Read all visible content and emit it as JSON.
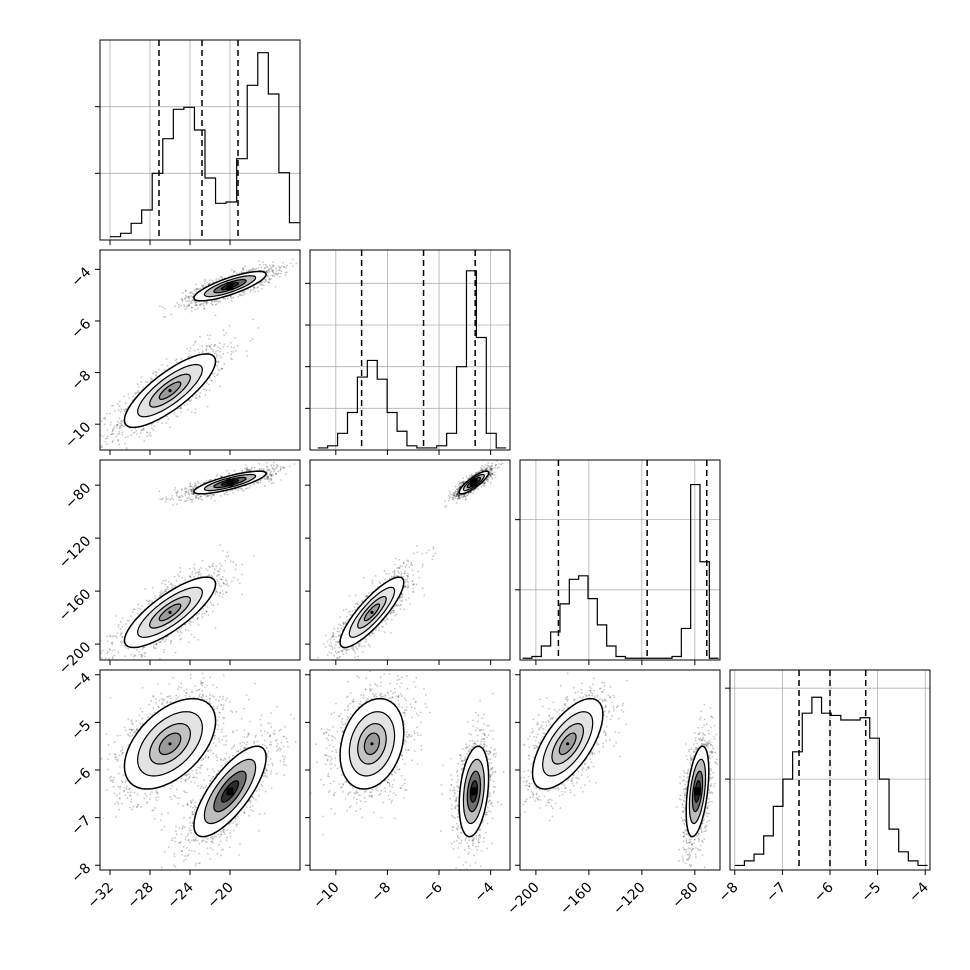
{
  "chart_data": {
    "type": "corner",
    "parameters": [
      {
        "ticks": [
          "−32",
          "−28",
          "−24",
          "−20"
        ],
        "tick_values": [
          -32,
          -28,
          -24,
          -20
        ],
        "range": [
          -33,
          -13
        ]
      },
      {
        "ticks": [
          "−10",
          "−8",
          "−6",
          "−4"
        ],
        "tick_values": [
          -10,
          -8,
          -6,
          -4
        ],
        "range": [
          -11,
          -3.25
        ]
      },
      {
        "ticks": [
          "−200",
          "−160",
          "−120",
          "−80"
        ],
        "tick_values": [
          -200,
          -160,
          -120,
          -80
        ],
        "range": [
          -212,
          -61
        ]
      },
      {
        "ticks": [
          "−8",
          "−7",
          "−6",
          "−5",
          "−4"
        ],
        "tick_values": [
          -8,
          -7,
          -6,
          -5,
          -4
        ],
        "range": [
          -8.1,
          -3.9
        ]
      }
    ],
    "histograms": [
      {
        "param": 0,
        "range": [
          -32,
          -13
        ],
        "max": 0.3,
        "counts": [
          0.005,
          0.01,
          0.025,
          0.045,
          0.1,
          0.152,
          0.196,
          0.199,
          0.165,
          0.093,
          0.055,
          0.057,
          0.122,
          0.232,
          0.281,
          0.219,
          0.101,
          0.026
        ],
        "quantiles": [
          -27.1,
          -22.8,
          -19.2
        ]
      },
      {
        "param": 1,
        "range": [
          -10.7,
          -3.4
        ],
        "max": 0.48,
        "counts": [
          0.005,
          0.01,
          0.04,
          0.09,
          0.175,
          0.215,
          0.17,
          0.09,
          0.045,
          0.01,
          0.005,
          0.005,
          0.01,
          0.04,
          0.2,
          0.43,
          0.27,
          0.04,
          0.005
        ],
        "quantiles": [
          -9.0,
          -6.6,
          -4.6
        ]
      },
      {
        "param": 2,
        "range": [
          -210,
          -62
        ],
        "max": 0.57,
        "counts": [
          0.005,
          0.01,
          0.04,
          0.08,
          0.16,
          0.23,
          0.24,
          0.175,
          0.1,
          0.04,
          0.01,
          0.005,
          0.005,
          0.005,
          0.005,
          0.005,
          0.01,
          0.09,
          0.5,
          0.28,
          0.005
        ],
        "quantiles": [
          -183,
          -116,
          -71
        ]
      },
      {
        "param": 3,
        "range": [
          -8.0,
          -3.95
        ],
        "max": 0.44,
        "counts": [
          0.01,
          0.02,
          0.035,
          0.075,
          0.14,
          0.2,
          0.26,
          0.345,
          0.38,
          0.345,
          0.34,
          0.33,
          0.33,
          0.335,
          0.29,
          0.2,
          0.09,
          0.04,
          0.02,
          0.01
        ],
        "quantiles": [
          -6.65,
          -6.0,
          -5.25
        ]
      }
    ],
    "scatter_panels": [
      {
        "x": 0,
        "y": 1,
        "clusters": [
          {
            "mx": -26.0,
            "my": -8.7,
            "sx": 2.4,
            "sy": 0.75,
            "rho": 0.8,
            "n": 1300,
            "density": 0.45
          },
          {
            "mx": -20.0,
            "my": -4.65,
            "sx": 1.9,
            "sy": 0.3,
            "rho": 0.8,
            "n": 1300,
            "density": 1.0
          }
        ]
      },
      {
        "x": 0,
        "y": 2,
        "clusters": [
          {
            "mx": -26.0,
            "my": -176,
            "sx": 2.4,
            "sy": 14,
            "rho": 0.8,
            "n": 1300,
            "density": 0.45
          },
          {
            "mx": -20.0,
            "my": -78,
            "sx": 1.9,
            "sy": 4.5,
            "rho": 0.8,
            "n": 1300,
            "density": 1.0
          }
        ]
      },
      {
        "x": 1,
        "y": 2,
        "clusters": [
          {
            "mx": -8.6,
            "my": -176,
            "sx": 0.65,
            "sy": 14,
            "rho": 0.85,
            "n": 1300,
            "density": 0.45
          },
          {
            "mx": -4.65,
            "my": -78,
            "sx": 0.3,
            "sy": 4.5,
            "rho": 0.85,
            "n": 1300,
            "density": 1.0
          }
        ]
      },
      {
        "x": 0,
        "y": 3,
        "clusters": [
          {
            "mx": -26.0,
            "my": -5.45,
            "sx": 2.4,
            "sy": 0.5,
            "rho": 0.5,
            "n": 1300,
            "density": 0.45
          },
          {
            "mx": -20.0,
            "my": -6.45,
            "sx": 1.9,
            "sy": 0.5,
            "rho": 0.75,
            "n": 1300,
            "density": 1.0
          }
        ]
      },
      {
        "x": 1,
        "y": 3,
        "clusters": [
          {
            "mx": -8.6,
            "my": -5.45,
            "sx": 0.65,
            "sy": 0.5,
            "rho": 0.25,
            "n": 1300,
            "density": 0.45
          },
          {
            "mx": -4.65,
            "my": -6.45,
            "sx": 0.3,
            "sy": 0.5,
            "rho": 0.3,
            "n": 1300,
            "density": 1.0
          }
        ]
      },
      {
        "x": 2,
        "y": 3,
        "clusters": [
          {
            "mx": -176,
            "my": -5.45,
            "sx": 14,
            "sy": 0.5,
            "rho": 0.65,
            "n": 1300,
            "density": 0.45
          },
          {
            "mx": -78,
            "my": -6.45,
            "sx": 4.5,
            "sy": 0.5,
            "rho": 0.45,
            "n": 1300,
            "density": 1.0
          }
        ]
      }
    ],
    "histogram_grid": true,
    "legend": "none"
  }
}
